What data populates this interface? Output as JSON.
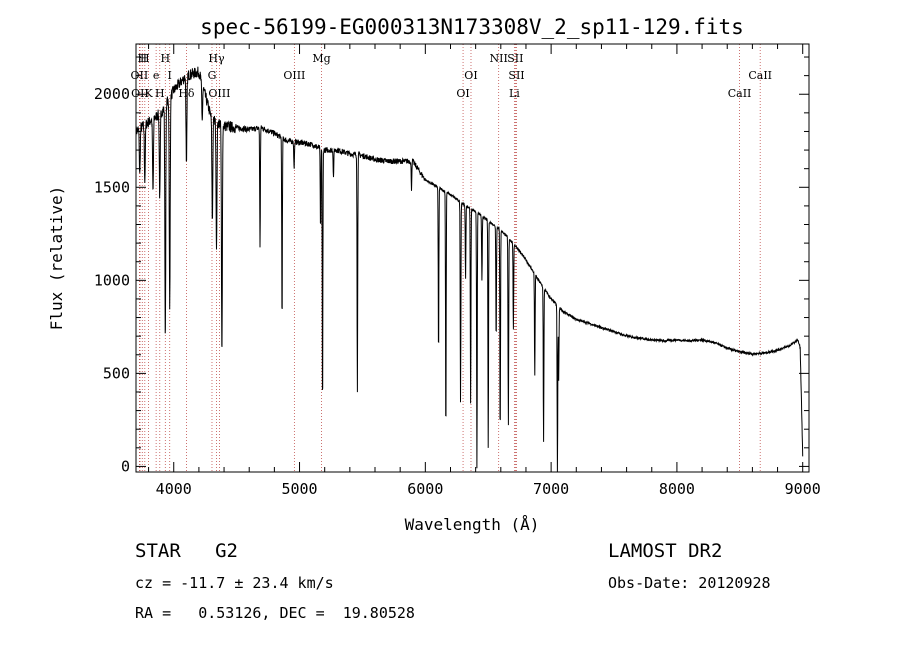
{
  "chart_data": {
    "type": "line",
    "title": "spec-56199-EG000313N173308V_2_sp11-129.fits",
    "xlabel": "Wavelength (Å)",
    "ylabel": "Flux (relative)",
    "xlim": [
      3700,
      9050
    ],
    "ylim": [
      -30,
      2270
    ],
    "x_ticks": [
      4000,
      5000,
      6000,
      7000,
      8000,
      9000
    ],
    "y_ticks": [
      0,
      500,
      1000,
      1500,
      2000
    ],
    "grid": false,
    "continuum": {
      "x": [
        3700,
        3800,
        3900,
        4000,
        4100,
        4200,
        4300,
        4400,
        4500,
        4600,
        4700,
        4800,
        4900,
        5000,
        5100,
        5200,
        5300,
        5400,
        5500,
        5600,
        5700,
        5800,
        5900,
        6000,
        6100,
        6200,
        6300,
        6400,
        6500,
        6600,
        6700,
        6800,
        6900,
        7000,
        7100,
        7200,
        7300,
        7400,
        7500,
        7600,
        7700,
        7800,
        7900,
        8000,
        8100,
        8200,
        8300,
        8400,
        8500,
        8600,
        8700,
        8800,
        8900,
        8960,
        8980,
        9000
      ],
      "y": [
        1800,
        1850,
        1900,
        2020,
        2100,
        2120,
        1870,
        1830,
        1820,
        1810,
        1820,
        1790,
        1750,
        1740,
        1730,
        1700,
        1700,
        1680,
        1670,
        1650,
        1640,
        1640,
        1640,
        1540,
        1500,
        1460,
        1410,
        1370,
        1320,
        1270,
        1200,
        1110,
        1000,
        900,
        830,
        790,
        770,
        745,
        725,
        700,
        690,
        680,
        675,
        680,
        675,
        680,
        665,
        635,
        615,
        605,
        610,
        625,
        650,
        680,
        640,
        50
      ]
    },
    "absorption_lines": [
      {
        "x": 3730,
        "depth": 250
      },
      {
        "x": 3770,
        "depth": 300
      },
      {
        "x": 3835,
        "depth": 400
      },
      {
        "x": 3889,
        "depth": 450
      },
      {
        "x": 3933,
        "depth": 1250
      },
      {
        "x": 3968,
        "depth": 1150
      },
      {
        "x": 4101,
        "depth": 500
      },
      {
        "x": 4226,
        "depth": 200
      },
      {
        "x": 4307,
        "depth": 550
      },
      {
        "x": 4340,
        "depth": 700
      },
      {
        "x": 4383,
        "depth": 1250
      },
      {
        "x": 4686,
        "depth": 650
      },
      {
        "x": 4861,
        "depth": 1000
      },
      {
        "x": 4957,
        "depth": 150
      },
      {
        "x": 5167,
        "depth": 450
      },
      {
        "x": 5183,
        "depth": 1400
      },
      {
        "x": 5270,
        "depth": 150
      },
      {
        "x": 5460,
        "depth": 1280
      },
      {
        "x": 5890,
        "depth": 150
      },
      {
        "x": 6105,
        "depth": 900
      },
      {
        "x": 6163,
        "depth": 1300
      },
      {
        "x": 6280,
        "depth": 1070
      },
      {
        "x": 6320,
        "depth": 400
      },
      {
        "x": 6360,
        "depth": 1050
      },
      {
        "x": 6410,
        "depth": 1380
      },
      {
        "x": 6450,
        "depth": 350
      },
      {
        "x": 6500,
        "depth": 1220
      },
      {
        "x": 6563,
        "depth": 600
      },
      {
        "x": 6595,
        "depth": 1100
      },
      {
        "x": 6660,
        "depth": 1010
      },
      {
        "x": 6700,
        "depth": 470
      },
      {
        "x": 6870,
        "depth": 550
      },
      {
        "x": 6940,
        "depth": 830
      },
      {
        "x": 7050,
        "depth": 900
      },
      {
        "x": 7060,
        "depth": 400
      }
    ],
    "line_markers": [
      {
        "x": 3727,
        "label": "OII",
        "row": 1
      },
      {
        "x": 3732,
        "label": "OII",
        "row": 2
      },
      {
        "x": 3750,
        "label": "H",
        "row": 0
      },
      {
        "x": 3770,
        "label": "H",
        "row": 0
      },
      {
        "x": 3800,
        "label": "K",
        "row": 2
      },
      {
        "x": 3860,
        "label": "e",
        "row": 1
      },
      {
        "x": 3889,
        "label": "H",
        "row": 2
      },
      {
        "x": 3933,
        "label": "H",
        "row": 0
      },
      {
        "x": 3968,
        "label": "I",
        "row": 1
      },
      {
        "x": 4101,
        "label": "Hδ",
        "row": 2
      },
      {
        "x": 4304,
        "label": "G",
        "row": 1
      },
      {
        "x": 4340,
        "label": "Hγ",
        "row": 0
      },
      {
        "x": 4363,
        "label": "OIII",
        "row": 2
      },
      {
        "x": 4959,
        "label": "OIII",
        "row": 1
      },
      {
        "x": 5175,
        "label": "Mg",
        "row": 0
      },
      {
        "x": 6300,
        "label": "OI",
        "row": 2
      },
      {
        "x": 6363,
        "label": "OI",
        "row": 1
      },
      {
        "x": 6583,
        "label": "NII",
        "row": 0
      },
      {
        "x": 6708,
        "label": "Li",
        "row": 2
      },
      {
        "x": 6716,
        "label": "SII",
        "row": 0
      },
      {
        "x": 6725,
        "label": "SII",
        "row": 1
      },
      {
        "x": 8498,
        "label": "CaII",
        "row": 2
      },
      {
        "x": 8662,
        "label": "CaII",
        "row": 1
      }
    ]
  },
  "info": {
    "object_class": "STAR   G2",
    "survey": "LAMOST DR2",
    "redshift": "cz = -11.7 ± 23.4 km/s",
    "obs_date": "Obs-Date: 20120928",
    "coords": "RA =   0.53126, DEC =  19.80528"
  }
}
